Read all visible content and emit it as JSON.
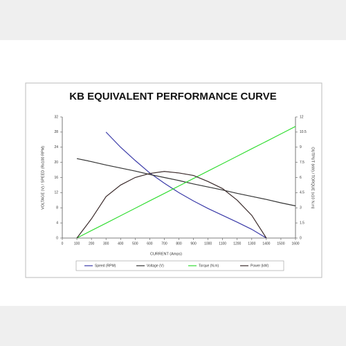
{
  "chart_data": {
    "type": "line",
    "title": "KB EQUIVALENT PERFORMANCE CURVE",
    "x_label": "CURRENT (Amps)",
    "y_label": "VOLTAGE (V) / SPEED (Rx100 RPM)",
    "y2_label": "OUTPUT (kW) / TORQUE (x10 N.m)",
    "x": [
      100,
      200,
      300,
      400,
      500,
      600,
      700,
      800,
      900,
      1000,
      1100,
      1200,
      1300,
      1400,
      1500,
      1600
    ],
    "xlim": [
      0,
      1600
    ],
    "xticks": [
      0,
      100,
      200,
      300,
      400,
      500,
      600,
      700,
      800,
      900,
      1000,
      1100,
      1200,
      1300,
      1400,
      1500,
      1600
    ],
    "ylim": [
      0,
      32
    ],
    "yticks": [
      0,
      4,
      8,
      12,
      16,
      20,
      24,
      28,
      32
    ],
    "y2lim": [
      0,
      12
    ],
    "y2ticks": [
      0,
      1.5,
      3,
      4.5,
      6,
      7.5,
      9,
      10.5,
      12
    ],
    "series": [
      {
        "name": "Speed (RPM)",
        "color": "#3a3aa8",
        "values": [
          null,
          null,
          28,
          24,
          20.5,
          17.2,
          14.5,
          12,
          9.8,
          7.8,
          6,
          4.2,
          2.3,
          0,
          null,
          null
        ]
      },
      {
        "name": "Voltage (V)",
        "color": "#333333",
        "values": [
          21,
          20.2,
          19.3,
          18.5,
          17.7,
          16.8,
          16,
          15.2,
          14.3,
          13.5,
          12.7,
          11.8,
          11,
          10.2,
          9.3,
          8.5
        ]
      },
      {
        "name": "Torque (N.m)",
        "color": "#33dd33",
        "axis": "y2",
        "values": [
          0,
          0.74,
          1.47,
          2.21,
          2.95,
          3.69,
          4.42,
          5.16,
          5.9,
          6.64,
          7.37,
          8.11,
          8.85,
          9.58,
          10.32,
          11.06
        ]
      },
      {
        "name": "Power (kW)",
        "color": "#3a2a2a",
        "axis": "y2",
        "values": [
          0,
          1.9,
          4.1,
          5.25,
          6.0,
          6.4,
          6.6,
          6.45,
          6.2,
          5.6,
          4.9,
          3.75,
          2.25,
          0,
          null,
          null
        ]
      }
    ]
  }
}
